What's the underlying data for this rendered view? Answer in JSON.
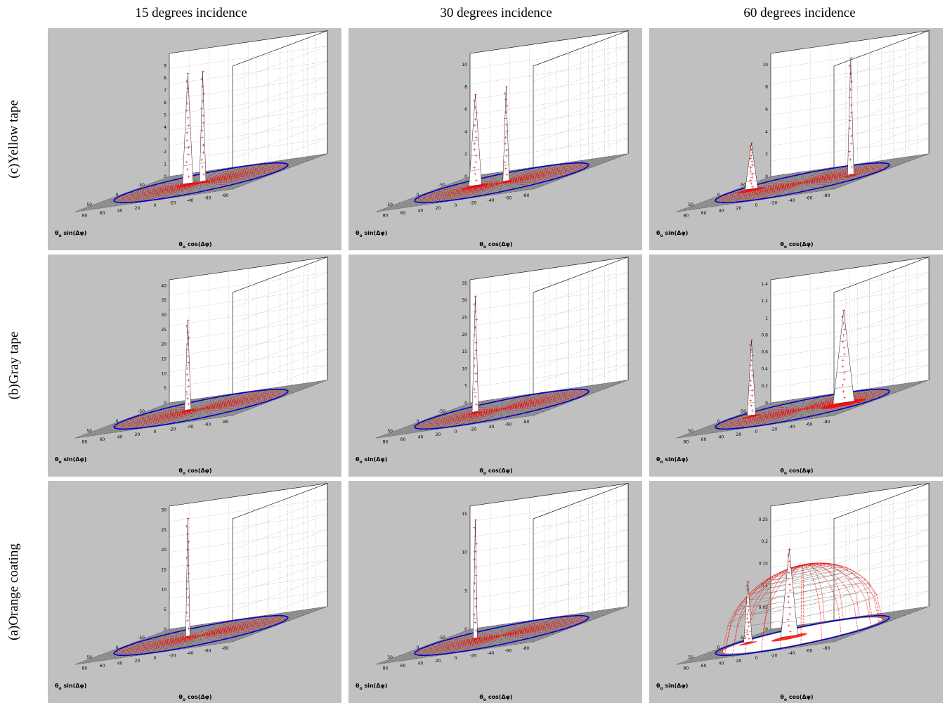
{
  "columns": [
    "15 degrees incidence",
    "30 degrees incidence",
    "60 degrees incidence"
  ],
  "rows": [
    "(c)Yellow tape",
    "(b)Gray tape",
    "(a)Orange coating"
  ],
  "colors": {
    "panel_bg": "#c0c0c0",
    "measured_points": "#ff0000",
    "boundary_circle": "#0000cc",
    "mesh": "#222222",
    "surface": "#ffffff"
  },
  "axes": {
    "xlabel_main": "θ",
    "xlabel_sub": "o",
    "xlabel_rest": " cos(Δφ)",
    "ylabel_main": "θ",
    "ylabel_sub": "o",
    "ylabel_rest": " sin(Δφ)",
    "x_ticks": [
      "80",
      "60",
      "40",
      "20",
      "0",
      "-20",
      "-40",
      "-60",
      "-80"
    ],
    "y_ticks": [
      "-50",
      "0",
      "50"
    ]
  },
  "chart_data": [
    {
      "type": "surface3d",
      "row": "(c)Yellow tape",
      "column": "15 degrees incidence",
      "z_ticks": [
        "0",
        "1",
        "2",
        "3",
        "4",
        "5",
        "6",
        "7",
        "8",
        "9"
      ],
      "zlim": [
        0,
        10
      ],
      "peaks": [
        {
          "x": 15,
          "y": 0,
          "z": 9.0,
          "w": 5
        },
        {
          "x": -2,
          "y": 0,
          "z": 9.0,
          "w": 3
        }
      ],
      "dome": null
    },
    {
      "type": "surface3d",
      "row": "(c)Yellow tape",
      "column": "30 degrees incidence",
      "z_ticks": [
        "0",
        "2",
        "4",
        "6",
        "8",
        "10"
      ],
      "zlim": [
        0,
        11
      ],
      "peaks": [
        {
          "x": 30,
          "y": 0,
          "z": 8.2,
          "w": 6
        },
        {
          "x": -5,
          "y": 0,
          "z": 8.5,
          "w": 3
        }
      ],
      "dome": null
    },
    {
      "type": "surface3d",
      "row": "(c)Yellow tape",
      "column": "60 degrees incidence",
      "z_ticks": [
        "0",
        "2",
        "4",
        "6",
        "8",
        "10"
      ],
      "zlim": [
        0,
        11
      ],
      "peaks": [
        {
          "x": 58,
          "y": 0,
          "z": 4.2,
          "w": 6
        },
        {
          "x": -55,
          "y": 0,
          "z": 10.5,
          "w": 3
        }
      ],
      "dome": null
    },
    {
      "type": "surface3d",
      "row": "(b)Gray tape",
      "column": "15 degrees incidence",
      "z_ticks": [
        "0",
        "5",
        "10",
        "15",
        "20",
        "25",
        "30",
        "35",
        "40"
      ],
      "zlim": [
        0,
        42
      ],
      "peaks": [
        {
          "x": 15,
          "y": 0,
          "z": 31,
          "w": 3
        }
      ],
      "dome": null
    },
    {
      "type": "surface3d",
      "row": "(b)Gray tape",
      "column": "30 degrees incidence",
      "z_ticks": [
        "0",
        "5",
        "10",
        "15",
        "20",
        "25",
        "30",
        "35"
      ],
      "zlim": [
        0,
        36
      ],
      "peaks": [
        {
          "x": 30,
          "y": 0,
          "z": 34,
          "w": 3
        }
      ],
      "dome": null
    },
    {
      "type": "surface3d",
      "row": "(b)Gray tape",
      "column": "60 degrees incidence",
      "z_ticks": [
        "0",
        "0.2",
        "0.4",
        "0.6",
        "0.8",
        "1",
        "1.2",
        "1.4"
      ],
      "zlim": [
        0,
        1.45
      ],
      "peaks": [
        {
          "x": 58,
          "y": 0,
          "z": 0.9,
          "w": 4
        },
        {
          "x": -50,
          "y": 5,
          "z": 1.1,
          "w": 10
        }
      ],
      "dome": null
    },
    {
      "type": "surface3d",
      "row": "(a)Orange coating",
      "column": "15 degrees incidence",
      "z_ticks": [
        "0",
        "5",
        "10",
        "15",
        "20",
        "25",
        "30"
      ],
      "zlim": [
        0,
        31
      ],
      "peaks": [
        {
          "x": 15,
          "y": 0,
          "z": 30,
          "w": 2
        }
      ],
      "dome": null
    },
    {
      "type": "surface3d",
      "row": "(a)Orange coating",
      "column": "30 degrees incidence",
      "z_ticks": [
        "0",
        "5",
        "10",
        "15"
      ],
      "zlim": [
        0,
        16
      ],
      "peaks": [
        {
          "x": 30,
          "y": 0,
          "z": 15.5,
          "w": 2
        }
      ],
      "dome": null
    },
    {
      "type": "surface3d",
      "row": "(a)Orange coating",
      "column": "60 degrees incidence",
      "z_ticks": [
        "0",
        "0.05",
        "0.1",
        "0.15",
        "0.2",
        "0.25"
      ],
      "zlim": [
        0,
        0.28
      ],
      "peaks": [
        {
          "x": 62,
          "y": 0,
          "z": 0.14,
          "w": 4
        },
        {
          "x": 15,
          "y": 0,
          "z": 0.2,
          "w": 8
        }
      ],
      "dome": {
        "z": 0.16,
        "r": 78
      }
    }
  ]
}
